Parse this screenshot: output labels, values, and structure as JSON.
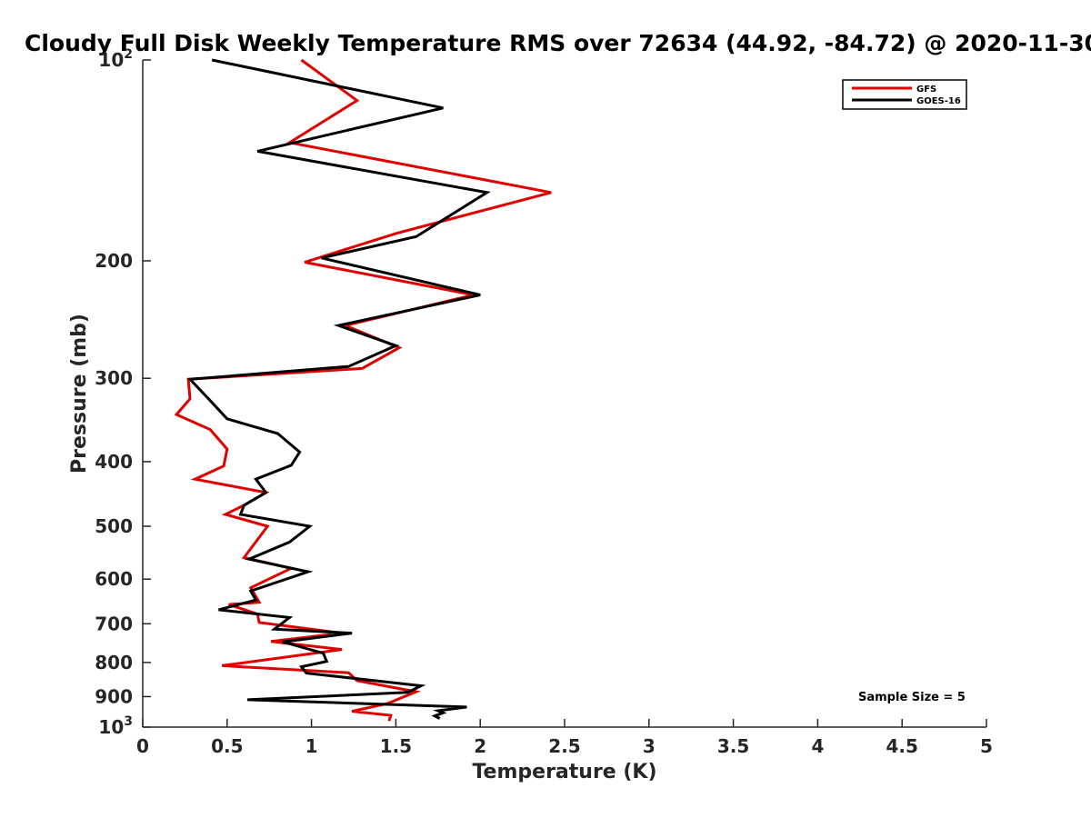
{
  "chart_data": {
    "type": "line",
    "title": "Cloudy Full Disk Weekly Temperature RMS over 72634 (44.92, -84.72) @ 2020-11-30",
    "xlabel": "Temperature (K)",
    "ylabel": "Pressure (mb)",
    "xlim": [
      0,
      5
    ],
    "ylim": [
      100,
      1000
    ],
    "yscale": "log",
    "y_reversed": true,
    "grid": false,
    "legend_position": "top-right",
    "x_ticks": [
      "0",
      "0.5",
      "1",
      "1.5",
      "2",
      "2.5",
      "3",
      "3.5",
      "4",
      "4.5",
      "5"
    ],
    "x_tick_values": [
      0,
      0.5,
      1,
      1.5,
      2,
      2.5,
      3,
      3.5,
      4,
      4.5,
      5
    ],
    "y_ticks": [
      {
        "value": 100,
        "base": "10",
        "sup": "2"
      },
      {
        "value": 200,
        "label": "200"
      },
      {
        "value": 300,
        "label": "300"
      },
      {
        "value": 400,
        "label": "400"
      },
      {
        "value": 500,
        "label": "500"
      },
      {
        "value": 600,
        "label": "600"
      },
      {
        "value": 700,
        "label": "700"
      },
      {
        "value": 800,
        "label": "800"
      },
      {
        "value": 900,
        "label": "900"
      },
      {
        "value": 1000,
        "base": "10",
        "sup": "3"
      }
    ],
    "annotation": "Sample Size = 5",
    "series": [
      {
        "name": "GFS",
        "color": "#e00000",
        "points": [
          [
            0.94,
            100
          ],
          [
            1.27,
            115
          ],
          [
            0.87,
            133
          ],
          [
            2.42,
            158
          ],
          [
            1.5,
            182
          ],
          [
            0.96,
            201
          ],
          [
            1.96,
            225
          ],
          [
            1.2,
            250
          ],
          [
            1.52,
            270
          ],
          [
            1.3,
            290
          ],
          [
            0.27,
            301
          ],
          [
            0.28,
            322
          ],
          [
            0.2,
            340
          ],
          [
            0.4,
            358
          ],
          [
            0.5,
            383
          ],
          [
            0.48,
            406
          ],
          [
            0.31,
            425
          ],
          [
            0.73,
            445
          ],
          [
            0.6,
            465
          ],
          [
            0.49,
            480
          ],
          [
            0.74,
            500
          ],
          [
            0.6,
            557
          ],
          [
            0.88,
            578
          ],
          [
            0.64,
            618
          ],
          [
            0.69,
            650
          ],
          [
            0.51,
            655
          ],
          [
            0.68,
            677
          ],
          [
            0.69,
            697
          ],
          [
            1.18,
            723
          ],
          [
            0.76,
            744
          ],
          [
            1.18,
            765
          ],
          [
            0.47,
            809
          ],
          [
            1.22,
            829
          ],
          [
            1.27,
            852
          ],
          [
            1.62,
            885
          ],
          [
            1.45,
            922
          ],
          [
            1.24,
            947
          ],
          [
            1.47,
            960
          ],
          [
            1.46,
            979
          ]
        ]
      },
      {
        "name": "GOES-16",
        "color": "#000000",
        "points": [
          [
            0.41,
            100
          ],
          [
            1.78,
            118
          ],
          [
            0.68,
            137
          ],
          [
            2.04,
            158
          ],
          [
            1.62,
            184
          ],
          [
            1.06,
            198
          ],
          [
            2.0,
            225
          ],
          [
            1.16,
            250
          ],
          [
            1.5,
            268
          ],
          [
            1.22,
            288
          ],
          [
            0.28,
            301
          ],
          [
            0.38,
            320
          ],
          [
            0.5,
            345
          ],
          [
            0.8,
            363
          ],
          [
            0.93,
            387
          ],
          [
            0.88,
            405
          ],
          [
            0.67,
            425
          ],
          [
            0.73,
            445
          ],
          [
            0.6,
            465
          ],
          [
            0.58,
            480
          ],
          [
            0.99,
            500
          ],
          [
            0.87,
            528
          ],
          [
            0.63,
            560
          ],
          [
            0.98,
            585
          ],
          [
            0.64,
            625
          ],
          [
            0.67,
            645
          ],
          [
            0.45,
            667
          ],
          [
            0.87,
            685
          ],
          [
            0.78,
            713
          ],
          [
            1.24,
            723
          ],
          [
            0.83,
            745
          ],
          [
            1.07,
            775
          ],
          [
            1.09,
            797
          ],
          [
            0.94,
            812
          ],
          [
            0.97,
            830
          ],
          [
            1.65,
            867
          ],
          [
            1.57,
            887
          ],
          [
            0.62,
            910
          ],
          [
            1.92,
            933
          ],
          [
            1.75,
            945
          ],
          [
            1.78,
            952
          ],
          [
            1.73,
            962
          ],
          [
            1.76,
            971
          ]
        ]
      }
    ]
  }
}
